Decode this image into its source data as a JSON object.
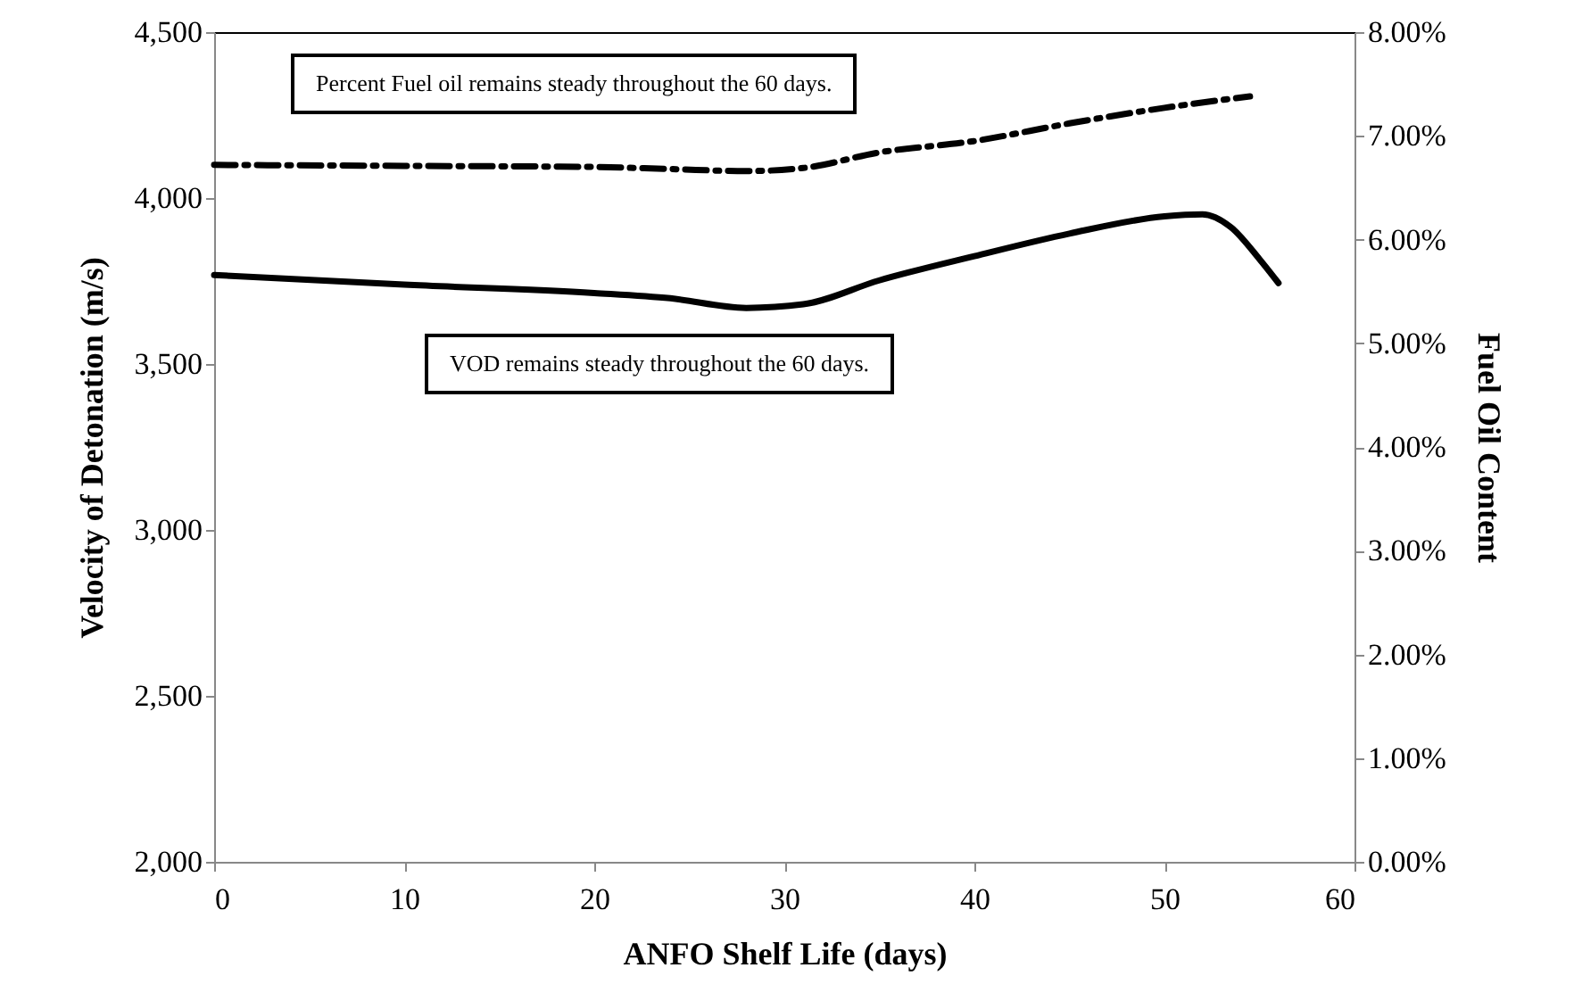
{
  "chart_data": {
    "type": "line",
    "xlabel": "ANFO Shelf Life (days)",
    "ylabel": "Velocity of Detonation (m/s)",
    "y2label": "Fuel Oil Content",
    "xlim": [
      0,
      60
    ],
    "xticks": [
      0,
      10,
      20,
      30,
      40,
      50,
      60
    ],
    "ylim": [
      2000,
      4500
    ],
    "yticks": [
      {
        "value": 2000,
        "label": "2,000"
      },
      {
        "value": 2500,
        "label": "2,500"
      },
      {
        "value": 3000,
        "label": "3,000"
      },
      {
        "value": 3500,
        "label": "3,500"
      },
      {
        "value": 4000,
        "label": "4,000"
      },
      {
        "value": 4500,
        "label": "4,500"
      }
    ],
    "y2lim": [
      0,
      8
    ],
    "y2ticks": [
      {
        "value": 0,
        "label": "0.00%"
      },
      {
        "value": 1,
        "label": "1.00%"
      },
      {
        "value": 2,
        "label": "2.00%"
      },
      {
        "value": 3,
        "label": "3.00%"
      },
      {
        "value": 4,
        "label": "4.00%"
      },
      {
        "value": 5,
        "label": "5.00%"
      },
      {
        "value": 6,
        "label": "6.00%"
      },
      {
        "value": 7,
        "label": "7.00%"
      },
      {
        "value": 8,
        "label": "8.00%"
      }
    ],
    "grid": false,
    "series": [
      {
        "color": "#000000",
        "line_style": "solid",
        "x": [
          0,
          10,
          20,
          24,
          28,
          31,
          35,
          40,
          45,
          50,
          52,
          53.5,
          55,
          56
        ],
        "values": [
          3768,
          3739,
          3714,
          3698,
          3669,
          3680,
          3752,
          3825,
          3893,
          3945,
          3951,
          3912,
          3816,
          3744
        ]
      },
      {
        "color": "#000000",
        "line_style": "dashed",
        "axis": "y2",
        "x": [
          0,
          10,
          20,
          24,
          28,
          31,
          35,
          40,
          45,
          50,
          54.5
        ],
        "values": [
          6.72,
          6.71,
          6.7,
          6.68,
          6.66,
          6.69,
          6.84,
          6.95,
          7.12,
          7.27,
          7.38
        ]
      }
    ],
    "annotations": [
      "Percent Fuel oil remains steady throughout the 60 days.",
      "VOD remains steady throughout the 60 days."
    ]
  }
}
